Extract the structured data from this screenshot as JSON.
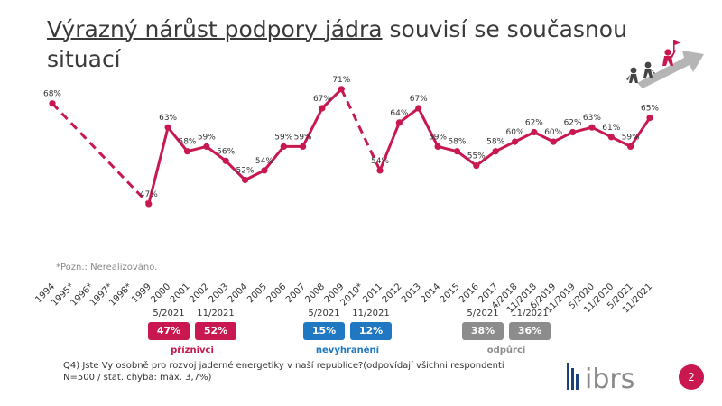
{
  "title": {
    "underlined": "Výrazný nárůst podpory jádra",
    "rest": " souvisí se současnou situací"
  },
  "colors": {
    "series": "#c8184f",
    "supporters": "#c8184f",
    "undecided": "#1f78c1",
    "opponents": "#8c8c8c",
    "page_badge": "#c8184f"
  },
  "chart_data": {
    "type": "line",
    "categories": [
      "1994",
      "1995*",
      "1996*",
      "1997*",
      "1998*",
      "1999",
      "2000",
      "2001",
      "2002",
      "2003",
      "2004",
      "2005",
      "2006",
      "2007",
      "2008",
      "2009",
      "2010*",
      "2011",
      "2012",
      "2013",
      "2014",
      "2015",
      "2016",
      "2017",
      "4/2018",
      "11/2018",
      "6/2019",
      "11/2019",
      "5/2020",
      "11/2020",
      "5/2021",
      "11/2021"
    ],
    "series": [
      {
        "values": [
          68,
          null,
          null,
          null,
          null,
          47,
          63,
          58,
          59,
          56,
          52,
          54,
          59,
          59,
          67,
          71,
          null,
          54,
          64,
          67,
          59,
          58,
          55,
          58,
          60,
          62,
          60,
          62,
          63,
          61,
          59,
          65
        ],
        "labels": [
          "68%",
          "",
          "",
          "",
          "",
          "47%",
          "63%",
          "58%",
          "59%",
          "56%",
          "52%",
          "54%",
          "59%",
          "59%",
          "67%",
          "71%",
          "",
          "54%",
          "64%",
          "67%",
          "59%",
          "58%",
          "55%",
          "58%",
          "60%",
          "62%",
          "60%",
          "62%",
          "63%",
          "61%",
          "59%",
          "65%"
        ]
      }
    ],
    "dashed_gaps": [
      [
        0,
        5
      ],
      [
        15,
        17
      ]
    ],
    "ylim": [
      40,
      75
    ],
    "note": "*Pozn.: Nerealizováno."
  },
  "summary": [
    {
      "label": "příznivci",
      "date1": "5/2021",
      "date2": "11/2021",
      "value1": "47%",
      "value2": "52%",
      "color_key": "supporters"
    },
    {
      "label": "nevyhranění",
      "date1": "5/2021",
      "date2": "11/2021",
      "value1": "15%",
      "value2": "12%",
      "color_key": "undecided"
    },
    {
      "label": "odpůrci",
      "date1": "5/2021",
      "date2": "11/2021",
      "value1": "38%",
      "value2": "36%",
      "color_key": "opponents"
    }
  ],
  "question": "Q4) Jste Vy osobně pro rozvoj jaderné energetiky v naší republice?(odpovídají všichni respondenti N=500 / stat. chyba: max. 3,7%)",
  "logo_text": "ibrs",
  "page_number": "2",
  "icons": [
    "climbing-people-icon",
    "ibrs-logo"
  ]
}
